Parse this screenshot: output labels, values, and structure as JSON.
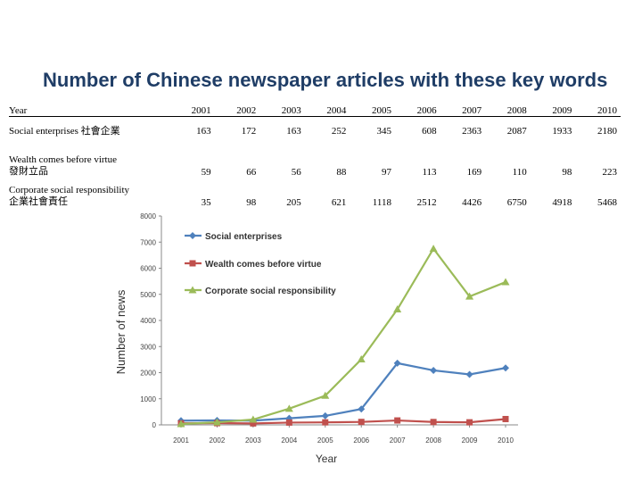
{
  "title": "Number of Chinese newspaper articles with these key words",
  "table": {
    "header_label": "Year",
    "years": [
      "2001",
      "2002",
      "2003",
      "2004",
      "2005",
      "2006",
      "2007",
      "2008",
      "2009",
      "2010"
    ],
    "rows": [
      {
        "label_line1": "Social enterprises 社會企業",
        "label_line2": "",
        "values": [
          "163",
          "172",
          "163",
          "252",
          "345",
          "608",
          "2363",
          "2087",
          "1933",
          "2180"
        ]
      },
      {
        "label_line1": "Wealth comes before virtue",
        "label_line2": "發財立品",
        "values": [
          "59",
          "66",
          "56",
          "88",
          "97",
          "113",
          "169",
          "110",
          "98",
          "223"
        ]
      },
      {
        "label_line1": "Corporate social responsibility",
        "label_line2": "企業社會責任",
        "values": [
          "35",
          "98",
          "205",
          "621",
          "1118",
          "2512",
          "4426",
          "6750",
          "4918",
          "5468"
        ]
      }
    ]
  },
  "chart_data": {
    "type": "line",
    "title": "Number of Chinese newspaper articles with these key words",
    "xlabel": "Year",
    "ylabel": "Number of news",
    "x": [
      "2001",
      "2002",
      "2003",
      "2004",
      "2005",
      "2006",
      "2007",
      "2008",
      "2009",
      "2010"
    ],
    "ylim": [
      0,
      8000
    ],
    "yticks": [
      "0",
      "1000",
      "2000",
      "3000",
      "4000",
      "5000",
      "6000",
      "7000",
      "8000"
    ],
    "legend_position": "top-left",
    "series": [
      {
        "name": "Social enterprises",
        "color": "#4f81bd",
        "marker": "diamond",
        "values": [
          163,
          172,
          163,
          252,
          345,
          608,
          2363,
          2087,
          1933,
          2180
        ]
      },
      {
        "name": "Wealth comes before virtue",
        "color": "#c0504d",
        "marker": "square",
        "values": [
          59,
          66,
          56,
          88,
          97,
          113,
          169,
          110,
          98,
          223
        ]
      },
      {
        "name": "Corporate social responsibility",
        "color": "#9bbb59",
        "marker": "triangle",
        "values": [
          35,
          98,
          205,
          621,
          1118,
          2512,
          4426,
          6750,
          4918,
          5468
        ]
      }
    ]
  }
}
